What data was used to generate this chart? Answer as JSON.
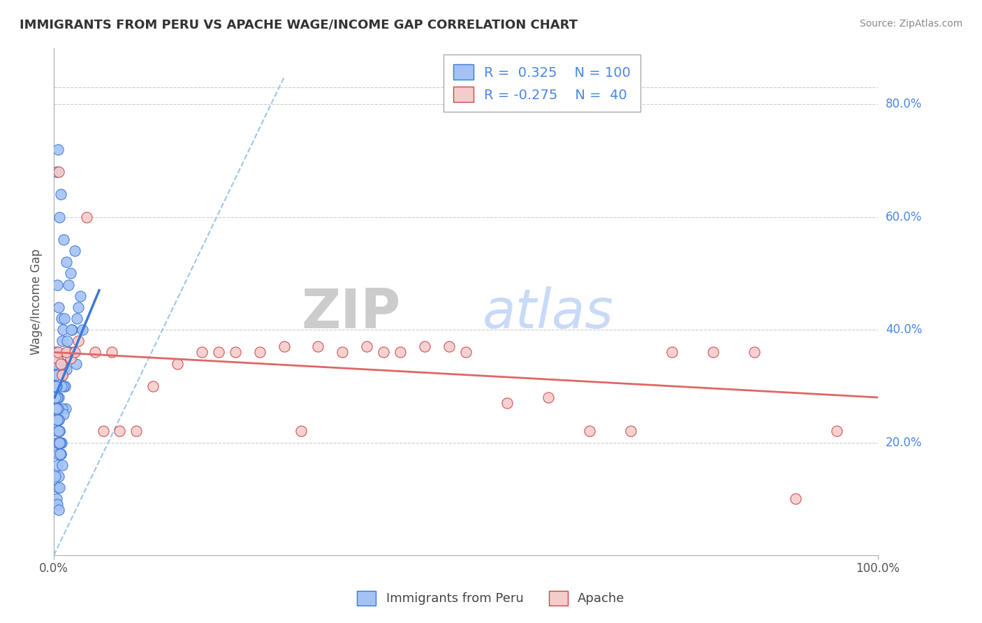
{
  "title": "IMMIGRANTS FROM PERU VS APACHE WAGE/INCOME GAP CORRELATION CHART",
  "source": "Source: ZipAtlas.com",
  "ylabel": "Wage/Income Gap",
  "blue_color": "#a4c2f4",
  "blue_edge_color": "#3c78d8",
  "pink_color": "#f4cccc",
  "pink_edge_color": "#cc4444",
  "trendline_blue_color": "#3c78d8",
  "trendline_pink_color": "#e06666",
  "dashed_line_color": "#9fc5e8",
  "ytick_color": "#4a86e8",
  "blue_scatter_x": [
    0.3,
    0.5,
    0.8,
    1.5,
    0.7,
    1.2,
    2.0,
    1.8,
    2.5,
    3.2,
    3.0,
    2.8,
    2.2,
    1.0,
    3.5,
    0.4,
    0.6,
    0.9,
    1.1,
    1.3,
    1.6,
    1.9,
    2.1,
    2.4,
    2.7,
    0.35,
    0.65,
    1.05,
    1.35,
    1.65,
    0.25,
    0.55,
    0.85,
    1.15,
    1.45,
    0.3,
    0.6,
    0.9,
    0.4,
    0.3,
    0.5,
    0.8,
    1.0,
    1.2,
    1.5,
    0.2,
    0.4,
    0.6,
    0.8,
    1.0,
    0.3,
    0.5,
    0.7,
    0.9,
    1.2,
    0.4,
    0.6,
    0.8,
    1.0,
    0.2,
    0.5,
    0.3,
    0.7,
    0.4,
    0.6,
    0.2,
    0.4,
    0.15,
    0.25,
    0.35,
    0.45,
    0.55,
    0.65,
    0.75,
    0.85,
    0.2,
    0.3,
    0.4,
    0.5,
    0.6,
    0.15,
    0.25,
    0.35,
    0.45,
    0.55,
    0.2,
    0.3,
    0.4,
    0.5,
    0.6,
    0.1,
    0.2,
    0.3,
    0.25,
    0.15,
    0.35,
    0.45,
    0.55,
    0.65,
    0.75
  ],
  "blue_scatter_y": [
    68,
    72,
    64,
    52,
    60,
    56,
    50,
    48,
    54,
    46,
    44,
    42,
    40,
    38,
    40,
    48,
    44,
    42,
    40,
    42,
    38,
    36,
    40,
    36,
    34,
    36,
    34,
    32,
    30,
    36,
    32,
    28,
    34,
    30,
    26,
    28,
    26,
    30,
    35,
    35,
    34,
    34,
    34,
    33,
    33,
    26,
    24,
    22,
    20,
    26,
    20,
    18,
    22,
    20,
    25,
    16,
    14,
    18,
    16,
    14,
    12,
    10,
    12,
    9,
    8,
    30,
    28,
    32,
    30,
    28,
    26,
    24,
    22,
    20,
    18,
    34,
    34,
    33,
    34,
    33,
    28,
    26,
    24,
    22,
    20,
    32,
    30,
    28,
    26,
    24,
    36,
    34,
    32,
    30,
    28,
    26,
    24,
    22,
    20,
    18
  ],
  "pink_scatter_x": [
    0.4,
    0.6,
    1.0,
    2.0,
    3.0,
    5.0,
    8.0,
    10.0,
    15.0,
    20.0,
    25.0,
    30.0,
    35.0,
    40.0,
    45.0,
    50.0,
    55.0,
    60.0,
    65.0,
    70.0,
    75.0,
    80.0,
    85.0,
    90.0,
    95.0,
    0.5,
    1.5,
    2.5,
    4.0,
    0.8,
    6.0,
    7.0,
    12.0,
    18.0,
    22.0,
    28.0,
    32.0,
    38.0,
    42.0,
    48.0
  ],
  "pink_scatter_y": [
    35,
    68,
    32,
    35,
    38,
    36,
    22,
    22,
    34,
    36,
    36,
    22,
    36,
    36,
    37,
    36,
    27,
    28,
    22,
    22,
    36,
    36,
    36,
    10,
    22,
    36,
    36,
    36,
    60,
    34,
    22,
    36,
    30,
    36,
    36,
    37,
    37,
    37,
    36,
    37
  ],
  "blue_trendline_x": [
    0.1,
    5.5
  ],
  "blue_trendline_y": [
    28,
    47
  ],
  "pink_trendline_x": [
    0.1,
    100
  ],
  "pink_trendline_y": [
    36,
    28
  ],
  "dashed_line_x": [
    0.0,
    28
  ],
  "dashed_line_y": [
    0,
    85
  ],
  "xmin": 0,
  "xmax": 100,
  "ymin": 0,
  "ymax": 90,
  "ytick_vals": [
    20,
    40,
    60,
    80
  ],
  "ytick_labels": [
    "20.0%",
    "40.0%",
    "60.0%",
    "80.0%"
  ],
  "xtick_vals": [
    0,
    100
  ],
  "xtick_labels": [
    "0.0%",
    "100.0%"
  ],
  "legend1_label": "R =  0.325    N = 100",
  "legend2_label": "R = -0.275    N =  40",
  "bottom_label1": "Immigrants from Peru",
  "bottom_label2": "Apache"
}
